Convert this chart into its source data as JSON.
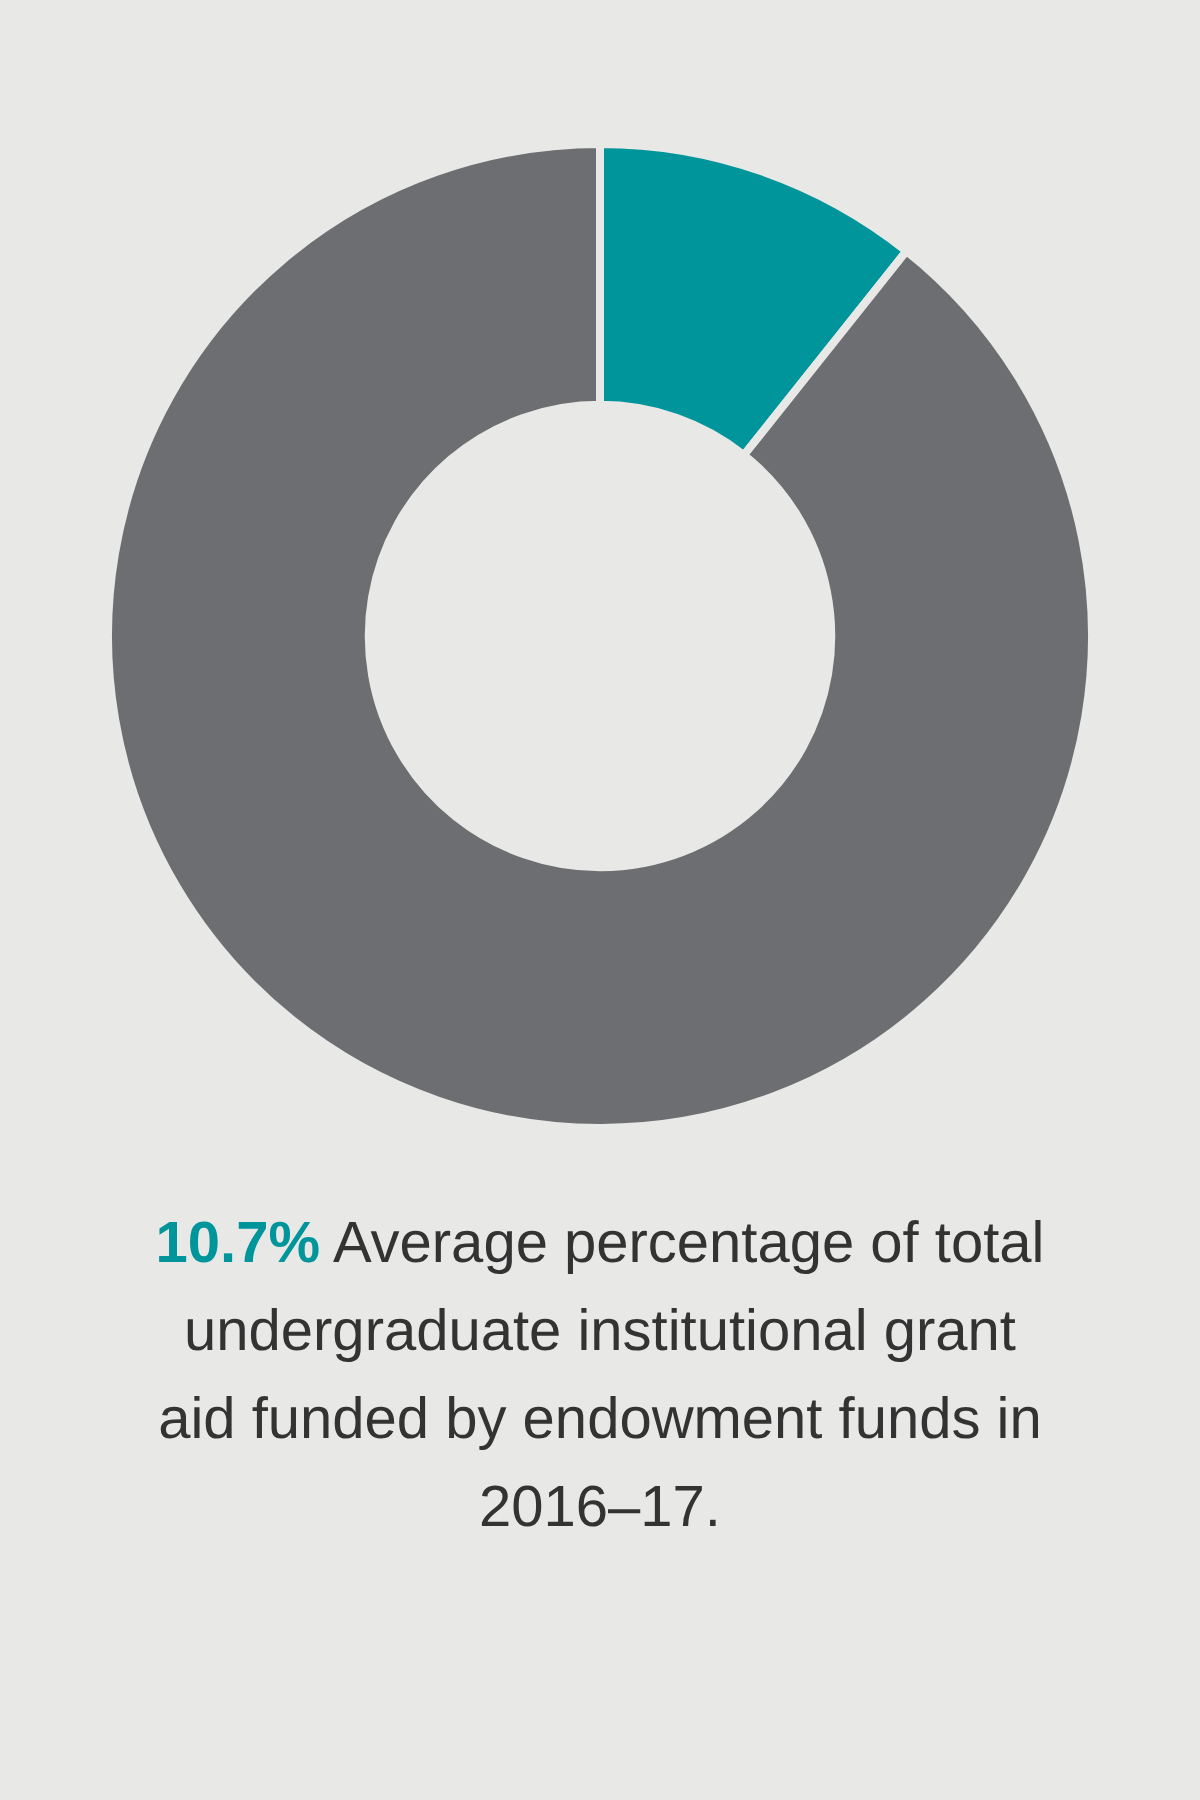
{
  "chart_data": {
    "type": "donut",
    "title": "10.7% Average percentage of total undergraduate institutional grant aid funded by endowment funds in 2016–17.",
    "categories": [
      null,
      null
    ],
    "values": [
      10.7,
      89.3
    ],
    "colors": [
      "#00959b",
      "#6d6e71"
    ]
  }
}
